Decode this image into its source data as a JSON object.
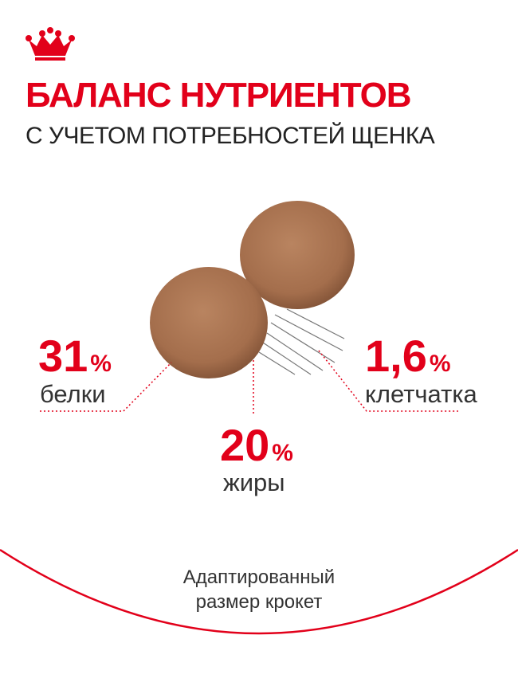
{
  "header": {
    "title": "БАЛАНС НУТРИЕНТОВ",
    "subtitle": "С УЧЕТОМ ПОТРЕБНОСТЕЙ ЩЕНКА"
  },
  "stats": [
    {
      "value": "31",
      "unit": "%",
      "label": "белки"
    },
    {
      "value": "20",
      "unit": "%",
      "label": "жиры"
    },
    {
      "value": "1,6",
      "unit": "%",
      "label": "клетчатка"
    }
  ],
  "footer": {
    "lines": [
      "Адаптированный",
      "размер крокет"
    ]
  }
}
